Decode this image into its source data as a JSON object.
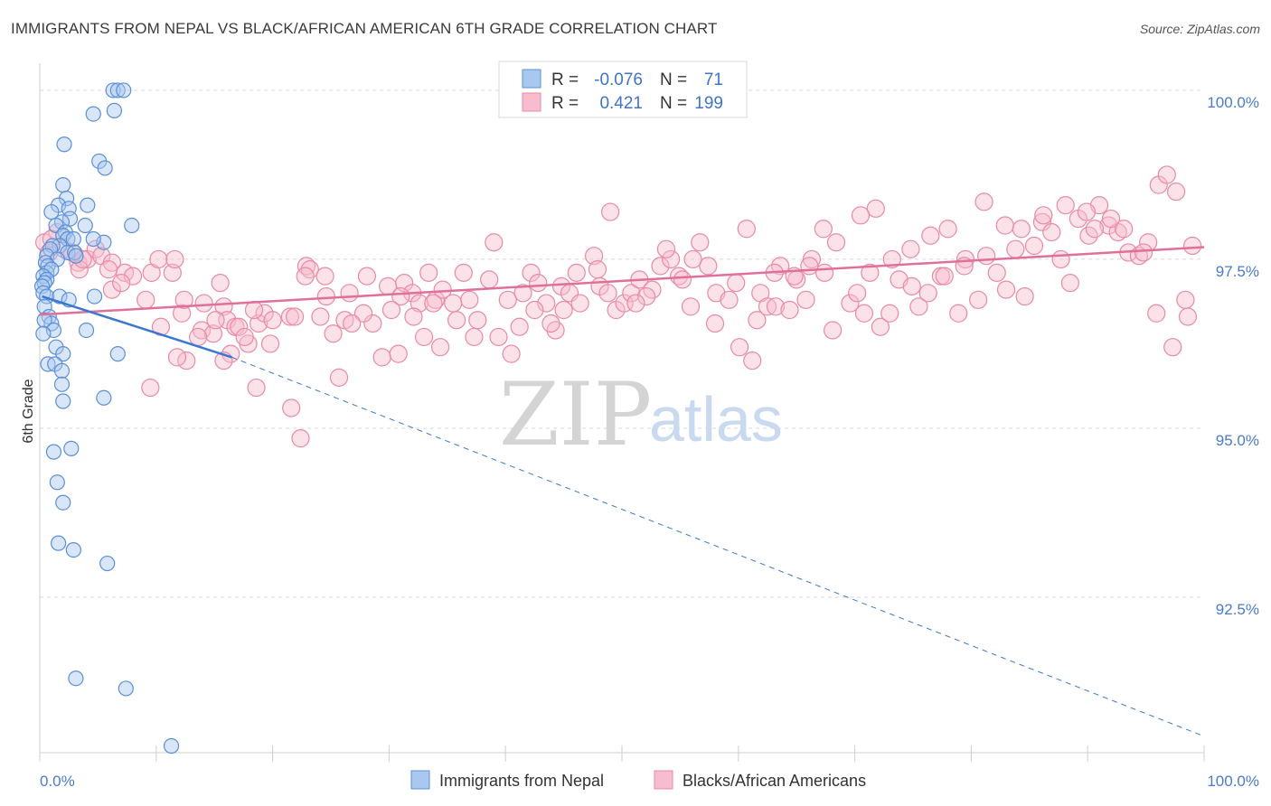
{
  "title": "IMMIGRANTS FROM NEPAL VS BLACK/AFRICAN AMERICAN 6TH GRADE CORRELATION CHART",
  "source": "Source: ZipAtlas.com",
  "watermark": {
    "zip": "ZIP",
    "atlas": "atlas"
  },
  "colors": {
    "blue_fill": "#a9c8ef",
    "blue_stroke": "#5b8fd6",
    "blue_line": "#3a78d0",
    "pink_fill": "#f7bccd",
    "pink_stroke": "#e88aa7",
    "pink_line": "#e0709a",
    "grid": "#d9d9d9",
    "axis_text": "#4a7cc9"
  },
  "legend": {
    "rows": [
      {
        "r_label": "R =",
        "r_value": "-0.076",
        "n_label": "N =",
        "n_value": "71",
        "color": "blue"
      },
      {
        "r_label": "R =",
        "r_value": "0.421",
        "n_label": "N =",
        "n_value": "199",
        "color": "pink"
      }
    ]
  },
  "bottom_legend": [
    "Immigrants from Nepal",
    "Blacks/African Americans"
  ],
  "chart_data": {
    "type": "scatter",
    "title": "IMMIGRANTS FROM NEPAL VS BLACK/AFRICAN AMERICAN 6TH GRADE CORRELATION CHART",
    "xlabel": "",
    "ylabel": "6th Grade",
    "xlim": [
      0,
      100
    ],
    "ylim": [
      90.2,
      100.4
    ],
    "x_tick_labels": [
      "0.0%",
      "100.0%"
    ],
    "y_ticks": [
      92.5,
      95.0,
      97.5,
      100.0
    ],
    "y_tick_labels": [
      "92.5%",
      "95.0%",
      "97.5%",
      "100.0%"
    ],
    "grid": true,
    "legend_position": "top-center",
    "series": [
      {
        "name": "Immigrants from Nepal",
        "color": "blue",
        "trend": {
          "x0": 0.2,
          "y0": 96.95,
          "x1": 16.5,
          "y1": 96.05,
          "dashed_to": [
            99.9,
            90.45
          ]
        },
        "points": [
          [
            6.3,
            100.0
          ],
          [
            6.7,
            100.0
          ],
          [
            7.2,
            100.0
          ],
          [
            4.6,
            99.65
          ],
          [
            6.4,
            99.7
          ],
          [
            2.1,
            99.2
          ],
          [
            5.1,
            98.95
          ],
          [
            5.6,
            98.85
          ],
          [
            2.0,
            98.6
          ],
          [
            2.3,
            98.4
          ],
          [
            1.6,
            98.3
          ],
          [
            4.1,
            98.3
          ],
          [
            2.5,
            98.25
          ],
          [
            1.0,
            98.2
          ],
          [
            2.6,
            98.1
          ],
          [
            1.9,
            98.05
          ],
          [
            1.4,
            98.0
          ],
          [
            3.9,
            98.0
          ],
          [
            7.9,
            98.0
          ],
          [
            2.2,
            97.9
          ],
          [
            2.0,
            97.85
          ],
          [
            2.4,
            97.8
          ],
          [
            5.5,
            97.75
          ],
          [
            1.7,
            97.7
          ],
          [
            2.9,
            97.8
          ],
          [
            4.6,
            97.8
          ],
          [
            1.1,
            97.7
          ],
          [
            0.9,
            97.65
          ],
          [
            2.4,
            97.6
          ],
          [
            3.0,
            97.6
          ],
          [
            0.6,
            97.55
          ],
          [
            1.5,
            97.5
          ],
          [
            3.1,
            97.55
          ],
          [
            0.5,
            97.45
          ],
          [
            0.7,
            97.4
          ],
          [
            0.6,
            97.3
          ],
          [
            1.0,
            97.35
          ],
          [
            0.3,
            97.25
          ],
          [
            0.6,
            97.2
          ],
          [
            0.4,
            97.15
          ],
          [
            0.2,
            97.1
          ],
          [
            0.3,
            97.0
          ],
          [
            0.6,
            96.95
          ],
          [
            1.7,
            96.95
          ],
          [
            2.5,
            96.9
          ],
          [
            4.7,
            96.95
          ],
          [
            0.4,
            96.8
          ],
          [
            0.8,
            96.65
          ],
          [
            1.0,
            96.55
          ],
          [
            0.4,
            96.6
          ],
          [
            1.2,
            96.45
          ],
          [
            4.0,
            96.45
          ],
          [
            0.3,
            96.4
          ],
          [
            1.4,
            96.2
          ],
          [
            2.0,
            96.1
          ],
          [
            6.7,
            96.1
          ],
          [
            0.7,
            95.95
          ],
          [
            1.3,
            95.95
          ],
          [
            1.9,
            95.85
          ],
          [
            1.9,
            95.65
          ],
          [
            2.0,
            95.4
          ],
          [
            5.5,
            95.45
          ],
          [
            1.2,
            94.65
          ],
          [
            2.7,
            94.7
          ],
          [
            1.5,
            94.2
          ],
          [
            2.0,
            93.9
          ],
          [
            1.6,
            93.3
          ],
          [
            2.9,
            93.2
          ],
          [
            5.8,
            93.0
          ],
          [
            3.1,
            91.3
          ],
          [
            7.4,
            91.15
          ],
          [
            11.3,
            90.3
          ]
        ]
      },
      {
        "name": "Blacks/African Americans",
        "color": "pink",
        "trend": {
          "x0": 0.0,
          "y0": 96.68,
          "x1": 100.0,
          "y1": 97.68
        },
        "points": [
          [
            0.4,
            97.75
          ],
          [
            0.8,
            97.6
          ],
          [
            1.5,
            97.9
          ],
          [
            2.8,
            97.6
          ],
          [
            3.3,
            97.45
          ],
          [
            4.1,
            97.5
          ],
          [
            4.8,
            97.65
          ],
          [
            5.3,
            97.55
          ],
          [
            6.2,
            97.45
          ],
          [
            7.3,
            97.3
          ],
          [
            8.0,
            97.25
          ],
          [
            6.2,
            97.05
          ],
          [
            9.6,
            97.3
          ],
          [
            10.2,
            97.5
          ],
          [
            11.4,
            97.3
          ],
          [
            11.6,
            97.5
          ],
          [
            3.4,
            97.35
          ],
          [
            9.1,
            96.9
          ],
          [
            10.4,
            96.5
          ],
          [
            12.2,
            96.7
          ],
          [
            12.4,
            96.9
          ],
          [
            12.6,
            96.0
          ],
          [
            13.9,
            96.45
          ],
          [
            14.1,
            96.85
          ],
          [
            14.9,
            96.4
          ],
          [
            15.5,
            97.15
          ],
          [
            15.8,
            96.8
          ],
          [
            16.1,
            96.6
          ],
          [
            16.8,
            96.5
          ],
          [
            17.1,
            96.5
          ],
          [
            17.9,
            96.25
          ],
          [
            18.8,
            96.55
          ],
          [
            19.3,
            96.7
          ],
          [
            20.0,
            96.6
          ],
          [
            21.5,
            96.65
          ],
          [
            22.9,
            97.4
          ],
          [
            23.2,
            97.35
          ],
          [
            24.1,
            96.65
          ],
          [
            24.6,
            96.95
          ],
          [
            25.2,
            96.4
          ],
          [
            26.2,
            96.6
          ],
          [
            26.6,
            97.0
          ],
          [
            28.1,
            97.25
          ],
          [
            28.6,
            96.55
          ],
          [
            29.4,
            96.05
          ],
          [
            29.9,
            97.1
          ],
          [
            30.8,
            96.1
          ],
          [
            31.3,
            97.15
          ],
          [
            32.0,
            97.0
          ],
          [
            32.6,
            96.85
          ],
          [
            33.0,
            96.35
          ],
          [
            33.4,
            97.3
          ],
          [
            34.0,
            96.9
          ],
          [
            34.6,
            97.05
          ],
          [
            35.8,
            96.6
          ],
          [
            36.4,
            97.3
          ],
          [
            36.9,
            96.9
          ],
          [
            37.3,
            96.35
          ],
          [
            38.6,
            97.2
          ],
          [
            39.4,
            96.35
          ],
          [
            40.5,
            96.1
          ],
          [
            41.5,
            97.0
          ],
          [
            42.2,
            97.3
          ],
          [
            42.8,
            97.15
          ],
          [
            43.5,
            96.85
          ],
          [
            44.3,
            96.45
          ],
          [
            44.8,
            97.1
          ],
          [
            45.5,
            97.0
          ],
          [
            46.4,
            96.85
          ],
          [
            47.6,
            97.55
          ],
          [
            48.1,
            97.1
          ],
          [
            48.8,
            97.0
          ],
          [
            49.5,
            96.75
          ],
          [
            50.2,
            96.85
          ],
          [
            50.8,
            97.0
          ],
          [
            51.5,
            97.2
          ],
          [
            52.6,
            97.05
          ],
          [
            53.3,
            97.4
          ],
          [
            54.2,
            97.5
          ],
          [
            54.9,
            97.25
          ],
          [
            55.9,
            96.8
          ],
          [
            56.7,
            97.75
          ],
          [
            57.4,
            97.4
          ],
          [
            58.1,
            97.0
          ],
          [
            59.8,
            97.15
          ],
          [
            60.1,
            96.2
          ],
          [
            61.2,
            96.0
          ],
          [
            61.9,
            97.0
          ],
          [
            62.5,
            96.8
          ],
          [
            63.2,
            96.8
          ],
          [
            63.6,
            97.4
          ],
          [
            64.4,
            96.75
          ],
          [
            65.0,
            97.2
          ],
          [
            65.8,
            96.9
          ],
          [
            66.3,
            97.5
          ],
          [
            67.4,
            97.3
          ],
          [
            68.1,
            96.45
          ],
          [
            69.6,
            96.85
          ],
          [
            70.2,
            97.0
          ],
          [
            70.8,
            96.7
          ],
          [
            71.3,
            97.3
          ],
          [
            72.2,
            96.5
          ],
          [
            73.2,
            97.5
          ],
          [
            73.8,
            97.2
          ],
          [
            74.8,
            97.65
          ],
          [
            75.5,
            96.8
          ],
          [
            76.3,
            97.0
          ],
          [
            77.4,
            97.25
          ],
          [
            78.0,
            97.95
          ],
          [
            78.9,
            96.7
          ],
          [
            79.5,
            97.5
          ],
          [
            80.6,
            96.9
          ],
          [
            81.3,
            97.55
          ],
          [
            82.2,
            97.3
          ],
          [
            83.0,
            97.05
          ],
          [
            83.8,
            97.65
          ],
          [
            84.6,
            96.95
          ],
          [
            85.4,
            97.7
          ],
          [
            86.1,
            98.05
          ],
          [
            86.9,
            97.9
          ],
          [
            87.7,
            97.5
          ],
          [
            88.5,
            97.15
          ],
          [
            89.2,
            98.1
          ],
          [
            90.1,
            97.85
          ],
          [
            91.0,
            98.3
          ],
          [
            91.8,
            98.0
          ],
          [
            92.6,
            97.9
          ],
          [
            93.5,
            97.6
          ],
          [
            94.4,
            97.55
          ],
          [
            95.2,
            97.75
          ],
          [
            96.1,
            98.6
          ],
          [
            96.8,
            98.75
          ],
          [
            97.6,
            98.5
          ],
          [
            98.4,
            96.9
          ],
          [
            99.0,
            97.7
          ],
          [
            98.6,
            96.65
          ],
          [
            97.3,
            96.2
          ],
          [
            95.9,
            96.7
          ],
          [
            94.8,
            97.6
          ],
          [
            93.1,
            97.95
          ],
          [
            92.0,
            98.1
          ],
          [
            90.6,
            97.95
          ],
          [
            89.9,
            98.2
          ],
          [
            88.1,
            98.3
          ],
          [
            86.2,
            98.15
          ],
          [
            84.3,
            97.95
          ],
          [
            82.9,
            98.0
          ],
          [
            81.1,
            98.35
          ],
          [
            79.4,
            97.4
          ],
          [
            77.7,
            97.25
          ],
          [
            76.5,
            97.85
          ],
          [
            74.9,
            97.1
          ],
          [
            73.0,
            96.7
          ],
          [
            71.8,
            98.25
          ],
          [
            70.5,
            98.15
          ],
          [
            68.4,
            97.75
          ],
          [
            67.3,
            97.95
          ],
          [
            66.1,
            97.4
          ],
          [
            64.8,
            97.25
          ],
          [
            63.1,
            97.3
          ],
          [
            61.6,
            96.6
          ],
          [
            60.7,
            97.95
          ],
          [
            59.2,
            96.9
          ],
          [
            58.0,
            96.55
          ],
          [
            56.1,
            97.5
          ],
          [
            55.2,
            97.2
          ],
          [
            53.8,
            97.65
          ],
          [
            52.1,
            96.95
          ],
          [
            51.2,
            96.85
          ],
          [
            49.0,
            98.2
          ],
          [
            47.9,
            97.35
          ],
          [
            46.1,
            97.3
          ],
          [
            45.0,
            96.75
          ],
          [
            43.9,
            96.55
          ],
          [
            42.5,
            96.75
          ],
          [
            41.2,
            96.5
          ],
          [
            40.2,
            96.9
          ],
          [
            39.0,
            97.75
          ],
          [
            37.6,
            96.6
          ],
          [
            35.5,
            96.85
          ],
          [
            34.4,
            96.2
          ],
          [
            33.8,
            96.85
          ],
          [
            32.1,
            96.65
          ],
          [
            31.0,
            96.95
          ],
          [
            30.2,
            96.75
          ],
          [
            27.8,
            96.7
          ],
          [
            26.8,
            96.55
          ],
          [
            25.7,
            95.75
          ],
          [
            24.5,
            97.25
          ],
          [
            22.8,
            97.25
          ],
          [
            21.9,
            96.65
          ],
          [
            19.8,
            96.25
          ],
          [
            18.4,
            96.75
          ],
          [
            17.6,
            96.35
          ],
          [
            16.4,
            96.1
          ],
          [
            15.1,
            96.6
          ],
          [
            13.6,
            96.35
          ],
          [
            11.8,
            96.05
          ],
          [
            9.5,
            95.6
          ],
          [
            7.0,
            97.15
          ],
          [
            5.9,
            97.35
          ],
          [
            3.7,
            97.5
          ],
          [
            2.1,
            97.65
          ],
          [
            1.0,
            97.8
          ],
          [
            18.6,
            95.6
          ],
          [
            21.6,
            95.3
          ],
          [
            22.4,
            94.85
          ],
          [
            15.8,
            96.0
          ]
        ]
      }
    ]
  }
}
